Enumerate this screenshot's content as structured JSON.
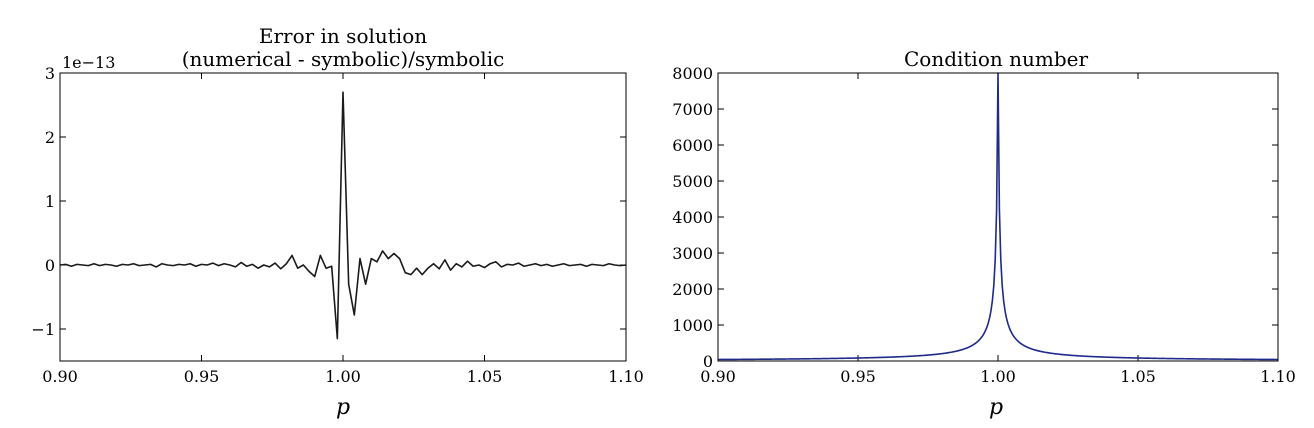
{
  "chart_data": [
    {
      "type": "line",
      "title": "Error in solution",
      "subtitle": "(numerical - symbolic)/symbolic",
      "xlabel": "p",
      "ylabel": "",
      "y_offset_label": "1e−13",
      "xlim": [
        0.9,
        1.1
      ],
      "ylim": [
        -1.5,
        3
      ],
      "xticks": [
        0.9,
        0.95,
        1.0,
        1.05,
        1.1
      ],
      "xtick_labels": [
        "0.90",
        "0.95",
        "1.00",
        "1.05",
        "1.10"
      ],
      "yticks": [
        -1,
        0,
        1,
        2,
        3
      ],
      "ytick_labels": [
        "−1",
        "0",
        "1",
        "2",
        "3"
      ],
      "grid": false,
      "line_color": "#1a1a1a",
      "x": [
        0.9,
        0.902,
        0.904,
        0.906,
        0.908,
        0.91,
        0.912,
        0.914,
        0.916,
        0.918,
        0.92,
        0.922,
        0.924,
        0.926,
        0.928,
        0.93,
        0.932,
        0.934,
        0.936,
        0.938,
        0.94,
        0.942,
        0.944,
        0.946,
        0.948,
        0.95,
        0.952,
        0.954,
        0.956,
        0.958,
        0.96,
        0.962,
        0.964,
        0.966,
        0.968,
        0.97,
        0.972,
        0.974,
        0.976,
        0.978,
        0.98,
        0.982,
        0.984,
        0.986,
        0.988,
        0.99,
        0.992,
        0.994,
        0.996,
        0.998,
        1.0,
        1.002,
        1.004,
        1.006,
        1.008,
        1.01,
        1.012,
        1.014,
        1.016,
        1.018,
        1.02,
        1.022,
        1.024,
        1.026,
        1.028,
        1.03,
        1.032,
        1.034,
        1.036,
        1.038,
        1.04,
        1.042,
        1.044,
        1.046,
        1.048,
        1.05,
        1.052,
        1.054,
        1.056,
        1.058,
        1.06,
        1.062,
        1.064,
        1.066,
        1.068,
        1.07,
        1.072,
        1.074,
        1.076,
        1.078,
        1.08,
        1.082,
        1.084,
        1.086,
        1.088,
        1.09,
        1.092,
        1.094,
        1.096,
        1.098,
        1.1
      ],
      "y": [
        0.0,
        0.01,
        -0.02,
        0.01,
        0.0,
        -0.01,
        0.02,
        -0.01,
        0.01,
        0.0,
        -0.02,
        0.01,
        0.0,
        0.02,
        -0.01,
        0.0,
        0.01,
        -0.03,
        0.02,
        0.0,
        -0.01,
        0.01,
        0.0,
        0.02,
        -0.02,
        0.01,
        0.0,
        0.03,
        -0.01,
        0.02,
        0.0,
        -0.03,
        0.04,
        -0.02,
        0.01,
        -0.05,
        0.0,
        -0.03,
        0.03,
        -0.06,
        0.02,
        0.15,
        -0.05,
        0.0,
        -0.1,
        -0.18,
        0.15,
        -0.05,
        -0.02,
        -1.15,
        2.7,
        -0.3,
        -0.78,
        0.1,
        -0.3,
        0.1,
        0.05,
        0.22,
        0.1,
        0.18,
        0.1,
        -0.12,
        -0.15,
        -0.05,
        -0.15,
        -0.05,
        0.02,
        -0.06,
        0.08,
        -0.08,
        0.02,
        -0.03,
        0.06,
        -0.02,
        0.0,
        -0.04,
        0.02,
        0.05,
        -0.03,
        0.01,
        0.0,
        0.03,
        -0.02,
        0.0,
        0.02,
        -0.01,
        0.01,
        -0.02,
        0.0,
        0.02,
        -0.01,
        0.0,
        0.01,
        -0.02,
        0.01,
        0.0,
        -0.01,
        0.02,
        0.0,
        -0.01,
        0.0
      ]
    },
    {
      "type": "line",
      "title": "Condition number",
      "xlabel": "p",
      "ylabel": "",
      "xlim": [
        0.9,
        1.1
      ],
      "ylim": [
        0,
        8000
      ],
      "xticks": [
        0.9,
        0.95,
        1.0,
        1.05,
        1.1
      ],
      "xtick_labels": [
        "0.90",
        "0.95",
        "1.00",
        "1.05",
        "1.10"
      ],
      "yticks": [
        0,
        1000,
        2000,
        3000,
        4000,
        5000,
        6000,
        7000,
        8000
      ],
      "ytick_labels": [
        "0",
        "1000",
        "2000",
        "3000",
        "4000",
        "5000",
        "6000",
        "7000",
        "8000"
      ],
      "grid": false,
      "line_color": "#1f2a8a"
    }
  ]
}
